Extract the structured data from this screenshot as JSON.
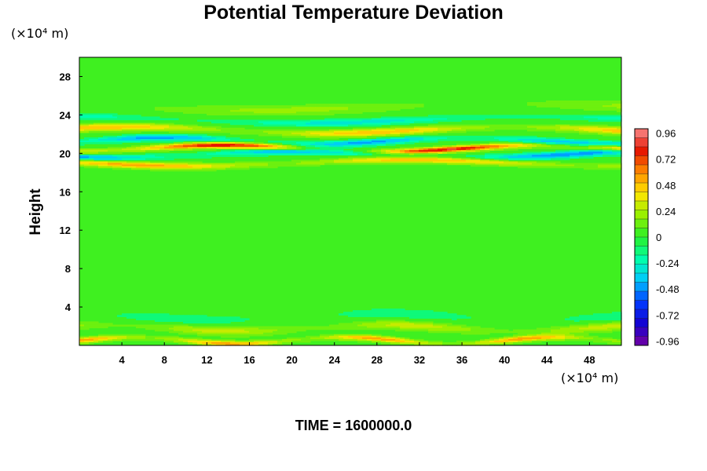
{
  "chart_data": {
    "type": "heatmap",
    "title": "Potential Temperature Deviation",
    "ylabel": "Height",
    "xlabel": "",
    "x_unit": "(×10⁴ m)",
    "y_unit": "(×10⁴ m)",
    "x_ticks": [
      "4",
      "8",
      "12",
      "16",
      "20",
      "24",
      "28",
      "32",
      "36",
      "40",
      "44",
      "48"
    ],
    "y_ticks": [
      "4",
      "8",
      "12",
      "16",
      "20",
      "24",
      "28"
    ],
    "xlim": [
      0,
      51
    ],
    "ylim": [
      0,
      30
    ],
    "colorbar": {
      "range": [
        -1.0,
        1.0
      ],
      "labels": [
        "0.96",
        "0.72",
        "0.48",
        "0.24",
        "0",
        "-0.24",
        "-0.48",
        "-0.72",
        "-0.96"
      ],
      "label_values": [
        0.96,
        0.72,
        0.48,
        0.24,
        0,
        -0.24,
        -0.48,
        -0.72,
        -0.96
      ],
      "levels": 24
    },
    "field_bands": [
      {
        "height": 0.5,
        "amplitude": 0.55,
        "width": 0.3,
        "wavelength": 20
      },
      {
        "height": 1.8,
        "amplitude": 0.3,
        "width": 0.5,
        "wavelength": 26
      },
      {
        "height": 3.0,
        "amplitude": -0.15,
        "width": 0.6,
        "wavelength": 30
      },
      {
        "height": 19.0,
        "amplitude": 0.55,
        "width": 0.35,
        "wavelength": 40
      },
      {
        "height": 19.9,
        "amplitude": -0.5,
        "width": 0.35,
        "wavelength": 34
      },
      {
        "height": 20.5,
        "amplitude": 0.85,
        "width": 0.3,
        "wavelength": 30
      },
      {
        "height": 21.3,
        "amplitude": -0.45,
        "width": 0.35,
        "wavelength": 28
      },
      {
        "height": 22.4,
        "amplitude": 0.5,
        "width": 0.4,
        "wavelength": 36
      },
      {
        "height": 23.5,
        "amplitude": -0.3,
        "width": 0.4,
        "wavelength": 44
      },
      {
        "height": 24.8,
        "amplitude": 0.2,
        "width": 0.6,
        "wavelength": 50
      }
    ]
  },
  "footer": {
    "time_label": "TIME = ",
    "time_value": "1600000.0"
  }
}
